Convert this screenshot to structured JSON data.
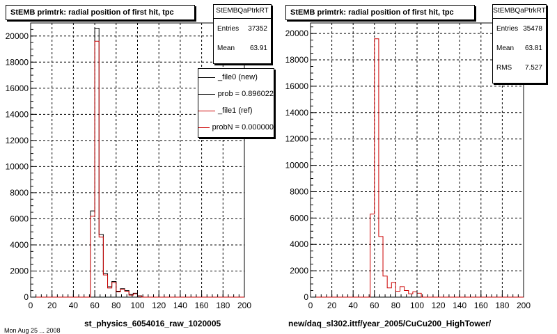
{
  "footer": "Mon Aug 25 ... 2008",
  "panels": [
    {
      "title": "StEMB primtrk: radial position of first hit, tpc",
      "stats": {
        "name": "StEMBQaPtrkRT",
        "rows": [
          {
            "label": "Entries",
            "value": "37352"
          },
          {
            "label": "Mean",
            "value": "63.91"
          }
        ]
      },
      "legend": [
        {
          "label": "_file0 (new)",
          "color": "#000000"
        },
        {
          "label": "prob = 0.896022",
          "color": "#000000"
        },
        {
          "label": "_file1 (ref)",
          "color": "#cc0000"
        },
        {
          "label": "probN = 0.000000",
          "color": "#cc0000"
        }
      ],
      "xtitle": "st_physics_6054016_raw_1020005"
    },
    {
      "title": "StEMB primtrk: radial position of first hit, tpc",
      "stats": {
        "name": "StEMBQaPtrkRT",
        "rows": [
          {
            "label": "Entries",
            "value": "35478"
          },
          {
            "label": "Mean",
            "value": "63.81"
          },
          {
            "label": "RMS",
            "value": "7.527"
          }
        ]
      },
      "legend": [],
      "xtitle": "new/daq_sl302.ittf/year_2005/CuCu200_HighTower/"
    }
  ],
  "chart_data": [
    {
      "type": "histogram",
      "title": "StEMB primtrk: radial position of first hit, tpc",
      "xlabel": "st_physics_6054016_raw_1020005",
      "ylabel": "",
      "xlim": [
        0,
        200
      ],
      "ylim": [
        0,
        21000
      ],
      "xticks": [
        0,
        20,
        40,
        60,
        80,
        100,
        120,
        140,
        160,
        180,
        200
      ],
      "yticks": [
        0,
        2000,
        4000,
        6000,
        8000,
        10000,
        12000,
        14000,
        16000,
        18000,
        20000
      ],
      "grid": true,
      "bin_width": 4,
      "series": [
        {
          "name": "_file0 (new)",
          "color": "#000000",
          "bins": [
            [
              56,
              6600
            ],
            [
              60,
              20600
            ],
            [
              64,
              4800
            ],
            [
              68,
              1800
            ],
            [
              72,
              800
            ],
            [
              76,
              1200
            ],
            [
              80,
              450
            ],
            [
              84,
              650
            ],
            [
              88,
              500
            ],
            [
              92,
              200
            ],
            [
              96,
              300
            ],
            [
              100,
              100
            ]
          ]
        },
        {
          "name": "_file1 (ref)",
          "color": "#cc0000",
          "bins": [
            [
              56,
              6200
            ],
            [
              60,
              19600
            ],
            [
              64,
              4600
            ],
            [
              68,
              1700
            ],
            [
              72,
              700
            ],
            [
              76,
              1100
            ],
            [
              80,
              400
            ],
            [
              84,
              600
            ],
            [
              88,
              450
            ],
            [
              92,
              150
            ],
            [
              96,
              250
            ],
            [
              100,
              80
            ]
          ]
        }
      ]
    },
    {
      "type": "histogram",
      "title": "StEMB primtrk: radial position of first hit, tpc",
      "xlabel": "new/daq_sl302.ittf/year_2005/CuCu200_HighTower/",
      "ylabel": "",
      "xlim": [
        0,
        200
      ],
      "ylim": [
        0,
        20800
      ],
      "xticks": [
        0,
        20,
        40,
        60,
        80,
        100,
        120,
        140,
        160,
        180,
        200
      ],
      "yticks": [
        0,
        2000,
        4000,
        6000,
        8000,
        10000,
        12000,
        14000,
        16000,
        18000,
        20000
      ],
      "grid": true,
      "bin_width": 4,
      "series": [
        {
          "name": "",
          "color": "#cc0000",
          "bins": [
            [
              56,
              6300
            ],
            [
              60,
              19600
            ],
            [
              64,
              4600
            ],
            [
              68,
              1600
            ],
            [
              72,
              700
            ],
            [
              76,
              1100
            ],
            [
              80,
              450
            ],
            [
              84,
              800
            ],
            [
              88,
              500
            ],
            [
              92,
              250
            ],
            [
              96,
              400
            ],
            [
              100,
              300
            ]
          ]
        }
      ]
    }
  ]
}
